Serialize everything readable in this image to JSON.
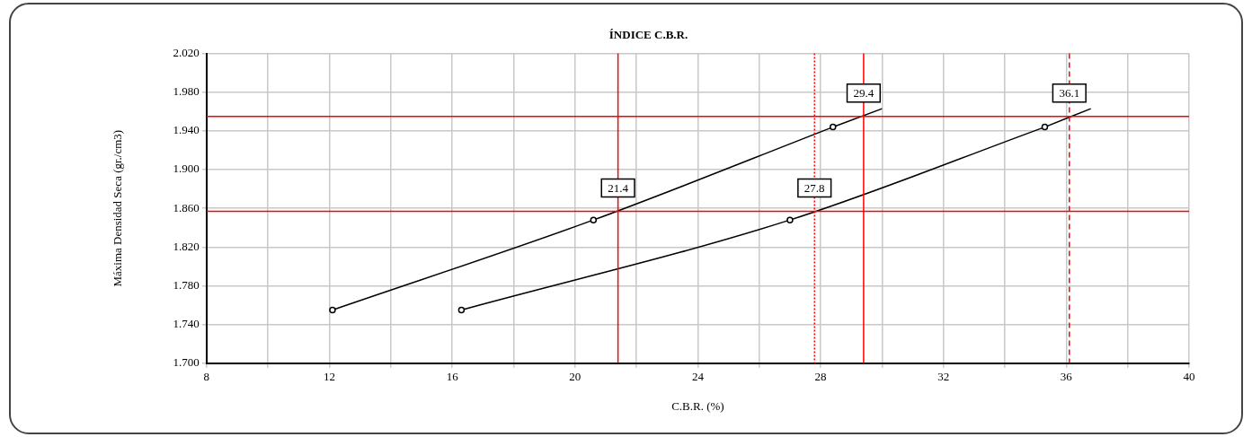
{
  "chart_data": {
    "type": "line",
    "title": "ÍNDICE C.B.R.",
    "xlabel": "C.B.R. (%)",
    "ylabel": "Máxima Densidad Seca (gr./cm3)",
    "series": [
      {
        "color": "#000000",
        "x": [
          12.1,
          20.6,
          28.4
        ],
        "values": [
          1.755,
          1.848,
          1.944
        ]
      },
      {
        "color": "#000000",
        "x": [
          28.4,
          30.0
        ],
        "values": [
          1.944,
          1.963
        ],
        "marker": "none"
      },
      {
        "color": "#000000",
        "x": [
          16.3,
          27.0,
          35.3
        ],
        "values": [
          1.755,
          1.848,
          1.944
        ]
      },
      {
        "color": "#000000",
        "x": [
          35.3,
          36.8
        ],
        "values": [
          1.944,
          1.963
        ],
        "marker": "none"
      }
    ],
    "marker": "circle",
    "grid": true,
    "legend": false,
    "xlim": [
      8,
      40
    ],
    "xticks": [
      8,
      {
        "value": 10,
        "label": null
      },
      12,
      {
        "value": 14,
        "label": null
      },
      16,
      {
        "value": 18,
        "label": null
      },
      20,
      {
        "value": 22,
        "label": null
      },
      24,
      {
        "value": 26,
        "label": null
      },
      28,
      {
        "value": 30,
        "label": null
      },
      32,
      {
        "value": 34,
        "label": null
      },
      36,
      {
        "value": 38,
        "label": null
      },
      40
    ],
    "ylim": [
      1.7,
      2.02
    ],
    "yticks": [
      {
        "value": 1.7,
        "label": "1.700"
      },
      {
        "value": 1.74,
        "label": "1.740"
      },
      {
        "value": 1.78,
        "label": "1.780"
      },
      {
        "value": 1.82,
        "label": "1.820"
      },
      {
        "value": 1.86,
        "label": "1.860"
      },
      {
        "value": 1.9,
        "label": "1.900"
      },
      {
        "value": 1.94,
        "label": "1.940"
      },
      {
        "value": 1.98,
        "label": "1.980"
      },
      {
        "value": 2.02,
        "label": "2.020"
      }
    ],
    "ref_lines": [
      {
        "axis": "y",
        "value": 1.955,
        "color": "#ff0000",
        "line_style": "solid"
      },
      {
        "axis": "y",
        "value": 1.857,
        "color": "#ff0000",
        "line_style": "solid"
      },
      {
        "axis": "x",
        "value": 21.4,
        "color": "#ff0000",
        "line_style": "solid"
      },
      {
        "axis": "x",
        "value": 27.8,
        "color": "#ff0000",
        "line_style": "dotted"
      },
      {
        "axis": "x",
        "value": 29.4,
        "color": "#ff0000",
        "line_style": "solid"
      },
      {
        "axis": "x",
        "value": 36.1,
        "color": "#ff0000",
        "line_style": "dashed"
      }
    ],
    "annotations": [
      {
        "text": "21.4",
        "x": 21.4,
        "y": 1.857
      },
      {
        "text": "27.8",
        "x": 27.8,
        "y": 1.857
      },
      {
        "text": "29.4",
        "x": 29.4,
        "y": 1.955
      },
      {
        "text": "36.1",
        "x": 36.1,
        "y": 1.955
      }
    ]
  }
}
